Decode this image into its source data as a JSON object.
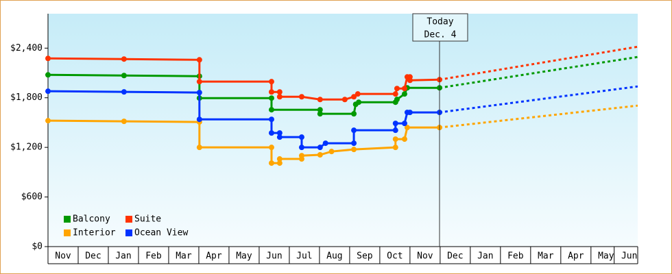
{
  "chart_data": {
    "type": "line",
    "xlim": [
      0,
      19.55
    ],
    "ylim": [
      0,
      2800
    ],
    "yticks": [
      {
        "value": 0,
        "label": "$0"
      },
      {
        "value": 600,
        "label": "$600"
      },
      {
        "value": 1200,
        "label": "$1,200"
      },
      {
        "value": 1800,
        "label": "$1,800"
      },
      {
        "value": 2400,
        "label": "$2,400"
      }
    ],
    "xticks": [
      {
        "value": 0.5,
        "label": "Nov"
      },
      {
        "value": 1.5,
        "label": "Dec"
      },
      {
        "value": 2.5,
        "label": "Jan"
      },
      {
        "value": 3.5,
        "label": "Feb"
      },
      {
        "value": 4.5,
        "label": "Mar"
      },
      {
        "value": 5.5,
        "label": "Apr"
      },
      {
        "value": 6.5,
        "label": "May"
      },
      {
        "value": 7.5,
        "label": "Jun"
      },
      {
        "value": 8.5,
        "label": "Jul"
      },
      {
        "value": 9.5,
        "label": "Aug"
      },
      {
        "value": 10.5,
        "label": "Sep"
      },
      {
        "value": 11.5,
        "label": "Oct"
      },
      {
        "value": 12.5,
        "label": "Nov"
      },
      {
        "value": 13.5,
        "label": "Dec"
      },
      {
        "value": 14.5,
        "label": "Jan"
      },
      {
        "value": 15.5,
        "label": "Feb"
      },
      {
        "value": 16.5,
        "label": "Mar"
      },
      {
        "value": 17.5,
        "label": "Apr"
      },
      {
        "value": 18.5,
        "label": "May"
      },
      {
        "value": 19.27,
        "label": "Jun"
      }
    ],
    "annotation": {
      "x": 12.98,
      "lines": [
        "Today",
        "Dec. 4"
      ]
    },
    "series": [
      {
        "name": "Balcony",
        "color": "#009900",
        "x": [
          0,
          2.52,
          5.02,
          5.02,
          7.41,
          7.41,
          9.02,
          9.02,
          10.14,
          10.2,
          10.3,
          11.52,
          11.57,
          11.82,
          11.91,
          12.98
        ],
        "values": [
          2077,
          2069,
          2061,
          1796,
          1796,
          1655,
          1655,
          1606,
          1606,
          1721,
          1746,
          1746,
          1780,
          1846,
          1920,
          1920
        ],
        "projection_x": [
          12.98,
          19.55
        ],
        "projection": [
          1920,
          2293
        ]
      },
      {
        "name": "Suite",
        "color": "#ff3300",
        "x": [
          0,
          2.52,
          5.02,
          5.02,
          7.41,
          7.41,
          7.68,
          7.68,
          8.41,
          9.02,
          9.84,
          10.14,
          10.27,
          11.52,
          11.57,
          11.82,
          11.91,
          12.0,
          12.0,
          12.98
        ],
        "values": [
          2276,
          2268,
          2259,
          1995,
          1995,
          1870,
          1870,
          1812,
          1812,
          1779,
          1779,
          1812,
          1846,
          1846,
          1912,
          1912,
          2052,
          2052,
          2011,
          2019
        ],
        "projection_x": [
          12.98,
          19.55
        ],
        "projection": [
          2019,
          2417
        ]
      },
      {
        "name": "Interior",
        "color": "#ffa500",
        "x": [
          0,
          2.52,
          5.02,
          5.02,
          7.41,
          7.41,
          7.68,
          7.68,
          8.41,
          8.41,
          9.02,
          9.4,
          10.14,
          11.52,
          11.52,
          11.82,
          11.91,
          12.98
        ],
        "values": [
          1523,
          1515,
          1507,
          1200,
          1200,
          1010,
          1010,
          1060,
          1060,
          1100,
          1110,
          1150,
          1175,
          1200,
          1300,
          1300,
          1440,
          1440
        ],
        "projection_x": [
          12.98,
          19.55
        ],
        "projection": [
          1440,
          1705
        ]
      },
      {
        "name": "Ocean View",
        "color": "#0033ff",
        "x": [
          0,
          2.52,
          5.02,
          5.02,
          7.41,
          7.41,
          7.68,
          7.68,
          8.41,
          8.41,
          9.02,
          9.2,
          10.14,
          10.14,
          11.52,
          11.52,
          11.82,
          11.91,
          12.0,
          12.98
        ],
        "values": [
          1879,
          1871,
          1863,
          1539,
          1539,
          1374,
          1374,
          1324,
          1324,
          1200,
          1200,
          1250,
          1250,
          1407,
          1407,
          1490,
          1490,
          1623,
          1623,
          1623
        ],
        "projection_x": [
          12.98,
          19.55
        ],
        "projection": [
          1623,
          1937
        ]
      }
    ]
  }
}
